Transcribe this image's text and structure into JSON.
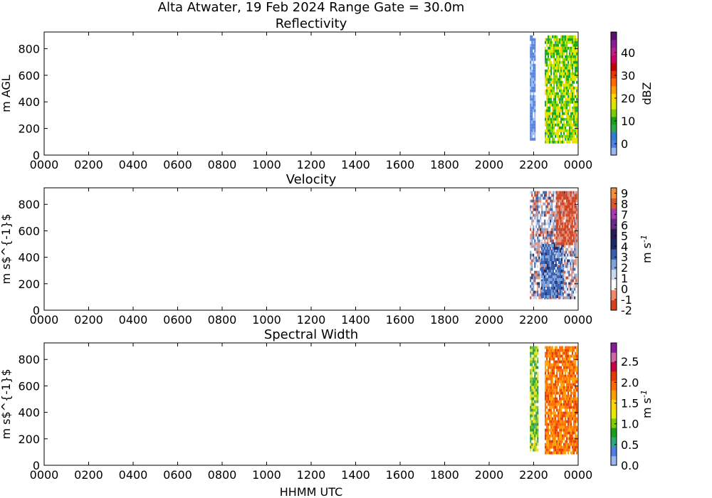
{
  "figure": {
    "title": "Alta Atwater, 19 Feb 2024 Range Gate = 30.0m",
    "xlabel": "HHMM UTC"
  },
  "chart_data": [
    {
      "type": "heatmap",
      "title": "Reflectivity",
      "ylabel": "m AGL",
      "x_ticks": [
        "0000",
        "0200",
        "0400",
        "0600",
        "0800",
        "1000",
        "1200",
        "1400",
        "1600",
        "1800",
        "2000",
        "2200",
        "0000"
      ],
      "y_ticks": [
        0,
        200,
        400,
        600,
        800
      ],
      "ylim": [
        0,
        925
      ],
      "colorbar": {
        "label": "dBZ",
        "range": [
          -5,
          49
        ],
        "ticks": [
          0,
          10,
          20,
          30,
          40
        ],
        "colors": [
          "#9ab6f5",
          "#4f7fe0",
          "#2e7dd6",
          "#2ea84a",
          "#19a019",
          "#7fcc00",
          "#d6e800",
          "#ffd400",
          "#ffa000",
          "#ff6a00",
          "#e33a00",
          "#c40000",
          "#cc0066",
          "#b81f8a",
          "#8a1a9a",
          "#5a1070"
        ]
      },
      "data_regions": [
        {
          "x_range": [
            "2150",
            "2205"
          ],
          "y_range": [
            120,
            900
          ],
          "value_range": [
            -3,
            2
          ],
          "dominant": "blue"
        },
        {
          "x_range": [
            "2230",
            "2355"
          ],
          "y_range": [
            90,
            900
          ],
          "value_range": [
            8,
            20
          ],
          "dominant": "green-yellow"
        }
      ]
    },
    {
      "type": "heatmap",
      "title": "Velocity",
      "ylabel": "m s$^{-1}$",
      "x_ticks": [
        "0000",
        "0200",
        "0400",
        "0600",
        "0800",
        "1000",
        "1200",
        "1400",
        "1600",
        "1800",
        "2000",
        "2200",
        "0000"
      ],
      "y_ticks": [
        0,
        200,
        400,
        600,
        800
      ],
      "ylim": [
        0,
        925
      ],
      "colorbar": {
        "label": "m s",
        "label_sup": "-1",
        "range": [
          -2,
          9.5
        ],
        "ticks": [
          -2,
          -1,
          0,
          1,
          2,
          3,
          4,
          5,
          6,
          7,
          8,
          9
        ],
        "colors": [
          "#d8401a",
          "#f08a6a",
          "#ffffff",
          "#c8d8ef",
          "#7fa3d8",
          "#3a5fae",
          "#1a2a66",
          "#2a1a55",
          "#6a2a8a",
          "#a83ab0",
          "#d65a30",
          "#f0903a"
        ]
      },
      "data_regions": [
        {
          "x_range": [
            "2150",
            "2355"
          ],
          "y_range": [
            90,
            900
          ],
          "value_range": [
            -1.5,
            4
          ],
          "dominant": "white-blue"
        },
        {
          "x_range": [
            "2220",
            "2320"
          ],
          "y_range": [
            100,
            500
          ],
          "value_range": [
            2,
            4
          ],
          "dominant": "dark-blue"
        },
        {
          "x_range": [
            "2300",
            "2355"
          ],
          "y_range": [
            500,
            900
          ],
          "value_range": [
            -2,
            -0.5
          ],
          "dominant": "red"
        }
      ]
    },
    {
      "type": "heatmap",
      "title": "Spectral Width",
      "ylabel": "m s$^{-1}$",
      "x_ticks": [
        "0000",
        "0200",
        "0400",
        "0600",
        "0800",
        "1000",
        "1200",
        "1400",
        "1600",
        "1800",
        "2000",
        "2200",
        "0000"
      ],
      "y_ticks": [
        0,
        200,
        400,
        600,
        800
      ],
      "ylim": [
        0,
        925
      ],
      "colorbar": {
        "label": "m s",
        "label_sup": "-1",
        "range": [
          0,
          2.95
        ],
        "ticks": [
          "0.0",
          "0.5",
          "1.0",
          "1.5",
          "2.0",
          "2.5"
        ],
        "colors": [
          "#9ab6f5",
          "#4f7fe0",
          "#2ea87a",
          "#19a019",
          "#7fcc00",
          "#e8e800",
          "#ffd400",
          "#ffa000",
          "#ff6a00",
          "#e33a00",
          "#cc0044",
          "#cc66aa",
          "#8a1a9a"
        ]
      },
      "data_regions": [
        {
          "x_range": [
            "2150",
            "2210"
          ],
          "y_range": [
            120,
            900
          ],
          "value_range": [
            0.5,
            1.5
          ],
          "dominant": "yellow-green"
        },
        {
          "x_range": [
            "2230",
            "2355"
          ],
          "y_range": [
            90,
            900
          ],
          "value_range": [
            1.6,
            2.2
          ],
          "dominant": "orange"
        }
      ]
    }
  ]
}
